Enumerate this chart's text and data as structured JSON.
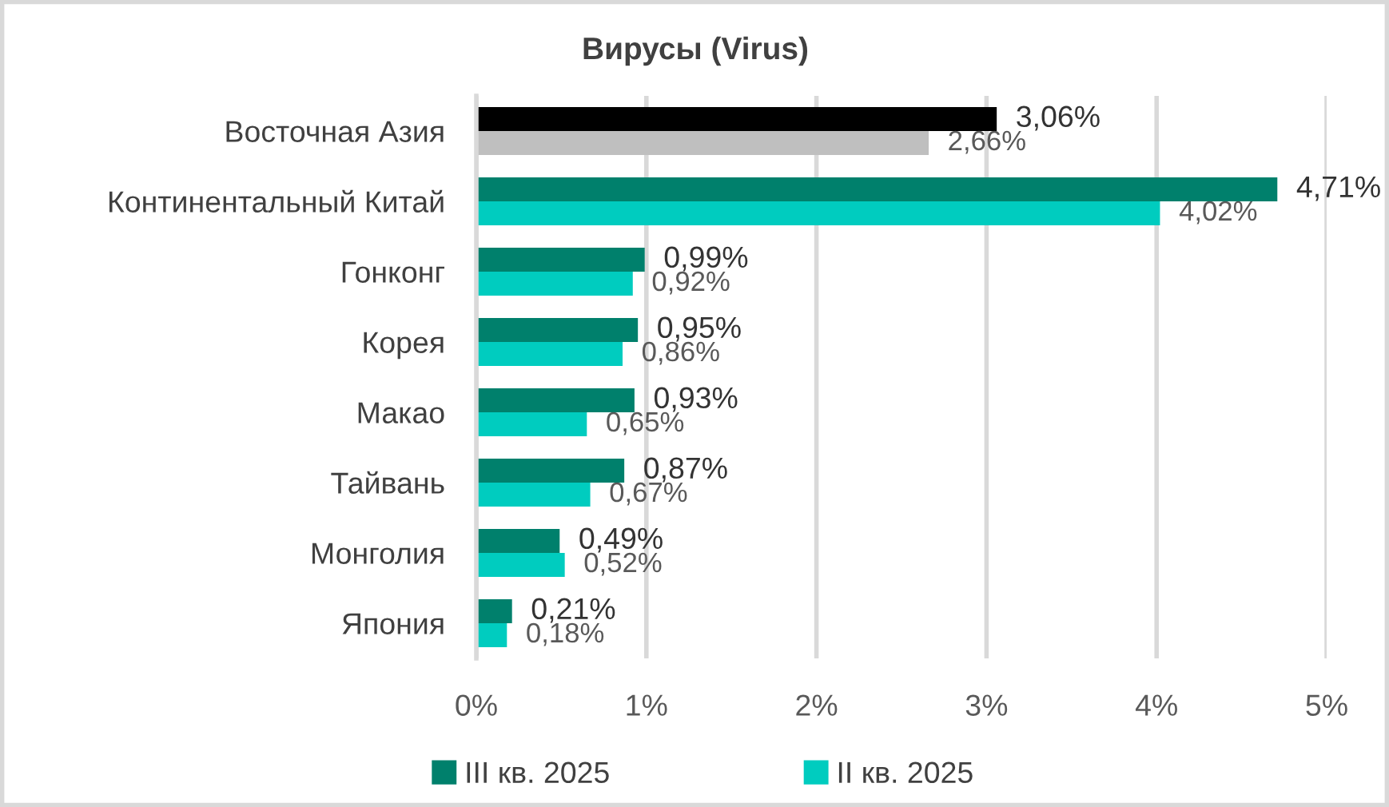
{
  "chart_data": {
    "type": "bar",
    "orientation": "horizontal",
    "title": "Вирусы (Virus)",
    "categories": [
      "Восточная Азия",
      "Континентальный Китай",
      "Гонконг",
      "Корея",
      "Макао",
      "Тайвань",
      "Монголия",
      "Япония"
    ],
    "series": [
      {
        "name": "III кв. 2025",
        "color": "#00806c",
        "colors": [
          "#000000",
          "#00806c",
          "#00806c",
          "#00806c",
          "#00806c",
          "#00806c",
          "#00806c",
          "#00806c"
        ],
        "values": [
          3.06,
          4.71,
          0.99,
          0.95,
          0.93,
          0.87,
          0.49,
          0.21
        ],
        "value_labels": [
          "3,06%",
          "4,71%",
          "0,99%",
          "0,95%",
          "0,93%",
          "0,87%",
          "0,49%",
          "0,21%"
        ]
      },
      {
        "name": "II кв. 2025",
        "color": "#00ccbf",
        "colors": [
          "#bfbfbf",
          "#00ccbf",
          "#00ccbf",
          "#00ccbf",
          "#00ccbf",
          "#00ccbf",
          "#00ccbf",
          "#00ccbf"
        ],
        "values": [
          2.66,
          4.02,
          0.92,
          0.86,
          0.65,
          0.67,
          0.52,
          0.18
        ],
        "value_labels": [
          "2,66%",
          "4,02%",
          "0,92%",
          "0,86%",
          "0,65%",
          "0,67%",
          "0,52%",
          "0,18%"
        ]
      }
    ],
    "xlim": [
      0,
      5
    ],
    "xticks": [
      {
        "value": 0,
        "label": "0%"
      },
      {
        "value": 1,
        "label": "1%"
      },
      {
        "value": 2,
        "label": "2%"
      },
      {
        "value": 3,
        "label": "3%"
      },
      {
        "value": 4,
        "label": "4%"
      },
      {
        "value": 5,
        "label": "5%"
      }
    ],
    "grid": "x",
    "legend": "bottom"
  }
}
